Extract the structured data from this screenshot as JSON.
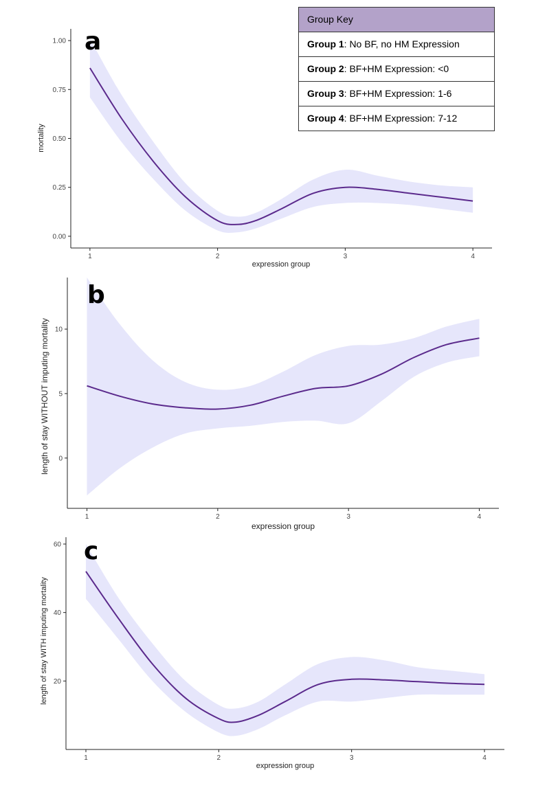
{
  "legend": {
    "title": "Group Key",
    "rows": [
      {
        "label": "Group 1",
        "text": ": No BF, no HM Expression"
      },
      {
        "label": "Group 2",
        "text": ": BF+HM Expression: <0"
      },
      {
        "label": "Group 3",
        "text": ": BF+HM Expression: 1-6"
      },
      {
        "label": "Group 4",
        "text": ": BF+HM Expression: 7-12"
      }
    ]
  },
  "colors": {
    "line": "#5b2a8c",
    "band": "#e6e6fb",
    "key_header": "#b3a2c9"
  },
  "chart_data": [
    {
      "type": "line",
      "panel_label": "a",
      "title": "",
      "xlabel": "expression group",
      "ylabel": "mortality",
      "x_ticks": [
        1,
        2,
        3,
        4
      ],
      "y_ticks": [
        0.0,
        0.25,
        0.5,
        0.75,
        1.0
      ],
      "y_tick_labels": [
        "0.00",
        "0.25",
        "0.50",
        "0.75",
        "1.00"
      ],
      "xlim": [
        0.85,
        4.15
      ],
      "ylim": [
        -0.06,
        1.06
      ],
      "series": [
        {
          "x": [
            1.0,
            1.25,
            1.5,
            1.75,
            2.0,
            2.15,
            2.3,
            2.5,
            2.75,
            3.0,
            3.25,
            3.5,
            3.75,
            4.0
          ],
          "y": [
            0.86,
            0.6,
            0.38,
            0.2,
            0.08,
            0.06,
            0.08,
            0.14,
            0.22,
            0.25,
            0.24,
            0.22,
            0.2,
            0.18
          ],
          "lower": [
            0.71,
            0.48,
            0.29,
            0.13,
            0.03,
            0.02,
            0.04,
            0.09,
            0.15,
            0.17,
            0.17,
            0.16,
            0.14,
            0.12
          ],
          "upper": [
            1.01,
            0.72,
            0.48,
            0.27,
            0.13,
            0.1,
            0.12,
            0.19,
            0.29,
            0.34,
            0.31,
            0.28,
            0.26,
            0.25
          ]
        }
      ],
      "grid": false
    },
    {
      "type": "line",
      "panel_label": "b",
      "title": "",
      "xlabel": "expression group",
      "ylabel": "length of stay WITHOUT imputing mortality",
      "x_ticks": [
        1,
        2,
        3,
        4
      ],
      "y_ticks": [
        0,
        5,
        10
      ],
      "y_tick_labels": [
        "0",
        "5",
        "10"
      ],
      "xlim": [
        0.85,
        4.15
      ],
      "ylim": [
        -3.9,
        14
      ],
      "series": [
        {
          "x": [
            1.0,
            1.25,
            1.5,
            1.75,
            2.0,
            2.25,
            2.5,
            2.75,
            3.0,
            3.25,
            3.5,
            3.75,
            4.0
          ],
          "y": [
            5.6,
            4.8,
            4.2,
            3.9,
            3.8,
            4.1,
            4.8,
            5.4,
            5.6,
            6.5,
            7.8,
            8.8,
            9.3
          ],
          "lower": [
            -2.9,
            -0.8,
            0.8,
            1.9,
            2.3,
            2.5,
            2.8,
            2.9,
            2.7,
            4.4,
            6.3,
            7.4,
            7.9
          ],
          "upper": [
            14.0,
            10.4,
            7.6,
            5.9,
            5.3,
            5.6,
            6.7,
            8.0,
            8.7,
            8.8,
            9.3,
            10.2,
            10.8
          ]
        }
      ],
      "grid": false
    },
    {
      "type": "line",
      "panel_label": "c",
      "title": "",
      "xlabel": "expression group",
      "ylabel": "length of stay WITH imputing mortality",
      "x_ticks": [
        1,
        2,
        3,
        4
      ],
      "y_ticks": [
        20,
        40,
        60
      ],
      "y_tick_labels": [
        "20",
        "40",
        "60"
      ],
      "xlim": [
        0.85,
        4.15
      ],
      "ylim": [
        0,
        62
      ],
      "series": [
        {
          "x": [
            1.0,
            1.25,
            1.5,
            1.75,
            2.0,
            2.13,
            2.3,
            2.5,
            2.75,
            3.0,
            3.25,
            3.5,
            3.75,
            4.0
          ],
          "y": [
            52,
            38,
            25,
            15,
            9,
            8,
            10,
            14,
            19,
            20.5,
            20.3,
            19.8,
            19.3,
            19
          ],
          "lower": [
            44,
            32,
            20,
            11,
            5,
            4,
            6,
            10,
            14,
            14,
            15,
            16,
            16,
            16
          ],
          "upper": [
            60,
            44,
            31,
            20,
            13,
            12,
            14,
            19,
            25,
            27,
            26,
            24,
            23,
            22
          ]
        }
      ],
      "grid": false
    }
  ]
}
